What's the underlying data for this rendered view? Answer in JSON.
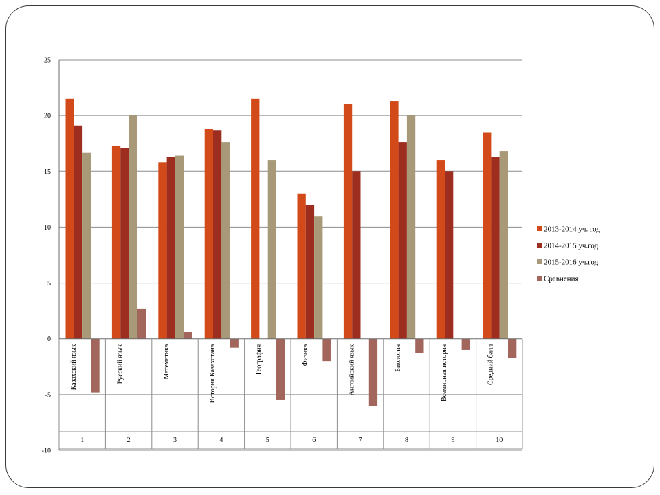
{
  "chart_data": {
    "type": "bar",
    "title": "",
    "xlabel": "",
    "ylabel": "",
    "ylim": [
      -10,
      25
    ],
    "yticks": [
      -10,
      -5,
      0,
      5,
      10,
      15,
      20,
      25
    ],
    "grid": true,
    "legend_position": "right",
    "categories": [
      {
        "number": "1",
        "name": "Казахский язык"
      },
      {
        "number": "2",
        "name": "Русский язык"
      },
      {
        "number": "3",
        "name": "Математика"
      },
      {
        "number": "4",
        "name": "История Казахстана"
      },
      {
        "number": "5",
        "name": "География"
      },
      {
        "number": "6",
        "name": "Физика"
      },
      {
        "number": "7",
        "name": "Английский язык"
      },
      {
        "number": "8",
        "name": "Биология"
      },
      {
        "number": "9",
        "name": "Всемирная история"
      },
      {
        "number": "10",
        "name": "Средний балл"
      }
    ],
    "series": [
      {
        "name": "2013-2014 уч. год",
        "color": "#d34a1a",
        "values": [
          21.5,
          17.3,
          15.8,
          18.8,
          21.5,
          13.0,
          21.0,
          21.3,
          16.0,
          18.5
        ]
      },
      {
        "name": "2014-2015 уч.год",
        "color": "#9c2d1f",
        "values": [
          19.1,
          17.1,
          16.3,
          18.7,
          null,
          12.0,
          15.0,
          17.6,
          15.0,
          16.3
        ]
      },
      {
        "name": "2015-2016 уч.год",
        "color": "#a89a78",
        "values": [
          16.7,
          20.0,
          16.4,
          17.6,
          16.0,
          11.0,
          null,
          20.0,
          null,
          16.8
        ]
      },
      {
        "name": "Сравнения",
        "color": "#a2665c",
        "values": [
          -4.8,
          2.7,
          0.6,
          -0.8,
          -5.5,
          -2.0,
          -6.0,
          -1.3,
          -1.0,
          -1.7
        ]
      }
    ]
  }
}
